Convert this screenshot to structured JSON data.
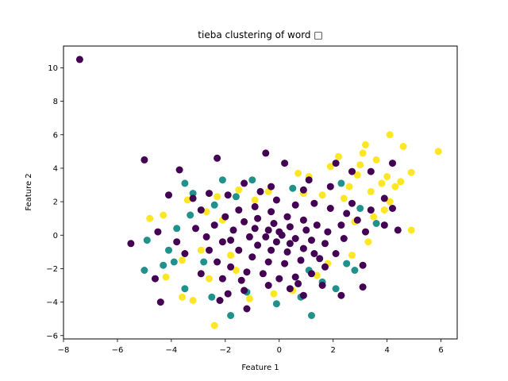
{
  "chart_data": {
    "type": "scatter",
    "title": "tieba clustering of word □",
    "xlabel": "Feature 1",
    "ylabel": "Feature 2",
    "xlim": [
      -8,
      6.6
    ],
    "ylim": [
      -6.2,
      11.3
    ],
    "xticks": [
      -8,
      -6,
      -4,
      -2,
      0,
      2,
      4,
      6
    ],
    "yticks": [
      -6,
      -4,
      -2,
      0,
      2,
      4,
      6,
      8,
      10
    ],
    "grid": false,
    "legend": "none",
    "series": [
      {
        "color": "#fde725",
        "points": [
          [
            5.9,
            5
          ],
          [
            4.9,
            3.75
          ],
          [
            4.1,
            6
          ],
          [
            4.6,
            5.3
          ],
          [
            4.5,
            3.2
          ],
          [
            4.1,
            2
          ],
          [
            4,
            3.5
          ],
          [
            4.9,
            0.3
          ],
          [
            3.2,
            5.4
          ],
          [
            3.6,
            4.5
          ],
          [
            3.1,
            4.9
          ],
          [
            3.8,
            3.1
          ],
          [
            2.2,
            4.7
          ],
          [
            1.9,
            4.1
          ],
          [
            1.1,
            3.5
          ],
          [
            0.7,
            3.7
          ],
          [
            -3.6,
            -3.7
          ],
          [
            -3.2,
            -3.9
          ],
          [
            -2.4,
            -5.4
          ],
          [
            -1.1,
            -3.8
          ],
          [
            -0.2,
            -3.5
          ],
          [
            -4.8,
            1
          ],
          [
            -4.3,
            1.2
          ],
          [
            -3.4,
            2.1
          ],
          [
            -2.3,
            2.3
          ],
          [
            -1.5,
            2.7
          ],
          [
            3,
            4.2
          ],
          [
            2.6,
            2.9
          ],
          [
            3.5,
            1.1
          ],
          [
            3.3,
            -0.4
          ],
          [
            2.7,
            -1.2
          ],
          [
            -2.6,
            -2.6
          ],
          [
            -2.9,
            -0.9
          ],
          [
            -3.6,
            -1.5
          ],
          [
            -4.2,
            -2.5
          ],
          [
            -1.8,
            -1.2
          ],
          [
            1.4,
            -2.4
          ],
          [
            0.5,
            -3.3
          ],
          [
            2.4,
            2.2
          ],
          [
            1.6,
            2.4
          ],
          [
            -0.9,
            2.1
          ],
          [
            1.8,
            -1.7
          ],
          [
            2.8,
            0.8
          ],
          [
            0.9,
            2.5
          ],
          [
            -2.1,
            0.9
          ],
          [
            -1.6,
            -2.1
          ],
          [
            3.9,
            1.5
          ],
          [
            3.4,
            2.6
          ],
          [
            -0.4,
            2.6
          ],
          [
            -2.7,
            1.4
          ],
          [
            4.3,
            2.9
          ],
          [
            2.9,
            3.6
          ]
        ]
      },
      {
        "color": "#21918c",
        "points": [
          [
            -4.9,
            -0.3
          ],
          [
            -5,
            -2.1
          ],
          [
            -4.3,
            -1.8
          ],
          [
            -4.1,
            -0.9
          ],
          [
            -3.8,
            0.4
          ],
          [
            -3.5,
            3.1
          ],
          [
            -3.2,
            2.5
          ],
          [
            -1.8,
            -4.8
          ],
          [
            -0.1,
            -4.1
          ],
          [
            1.2,
            -4.8
          ],
          [
            0.8,
            -3.7
          ],
          [
            2.1,
            -3.2
          ],
          [
            -3.5,
            -3.2
          ],
          [
            -2.8,
            -1.6
          ],
          [
            -2.4,
            1.8
          ],
          [
            -2.1,
            3.3
          ],
          [
            -1,
            3.3
          ],
          [
            2.3,
            3.1
          ],
          [
            3,
            1.6
          ],
          [
            3.6,
            0.7
          ],
          [
            2.5,
            -1.7
          ],
          [
            1.6,
            -2.8
          ],
          [
            -3.9,
            -1.6
          ],
          [
            -1.2,
            -3.4
          ],
          [
            -2.5,
            -3.7
          ],
          [
            -3.3,
            1.2
          ],
          [
            1.1,
            -2.1
          ],
          [
            2.8,
            -2.1
          ],
          [
            -1.6,
            2.3
          ],
          [
            0.5,
            2.8
          ]
        ]
      },
      {
        "color": "#440154",
        "points": [
          [
            -7.4,
            10.5
          ],
          [
            -5,
            4.5
          ],
          [
            -5.5,
            -0.5
          ],
          [
            -4.4,
            -4
          ],
          [
            -3.7,
            3.9
          ],
          [
            -4.1,
            2.4
          ],
          [
            -2.3,
            4.6
          ],
          [
            -0.5,
            4.9
          ],
          [
            0.2,
            4.3
          ],
          [
            1.1,
            3.3
          ],
          [
            2.1,
            4.3
          ],
          [
            2.7,
            3.8
          ],
          [
            3.4,
            3.8
          ],
          [
            4.2,
            4.3
          ],
          [
            3.9,
            2.2
          ],
          [
            4.2,
            1.6
          ],
          [
            4.4,
            0.3
          ],
          [
            3.9,
            0.6
          ],
          [
            3.2,
            0.2
          ],
          [
            3.1,
            -1.8
          ],
          [
            3.1,
            -3.1
          ],
          [
            2.3,
            -3.6
          ],
          [
            1.6,
            -3
          ],
          [
            0.9,
            -3.6
          ],
          [
            0.4,
            -3.2
          ],
          [
            -0.4,
            -3
          ],
          [
            -1.3,
            -3.3
          ],
          [
            -1.9,
            -3.5
          ],
          [
            -2.2,
            -3.9
          ],
          [
            -2.9,
            -2.3
          ],
          [
            -3.5,
            -1.1
          ],
          [
            -4.6,
            -2.6
          ],
          [
            -4.5,
            0.2
          ],
          [
            -3.8,
            -0.4
          ],
          [
            -3.1,
            0.4
          ],
          [
            -3.2,
            2.2
          ],
          [
            -2.6,
            2.5
          ],
          [
            -1.9,
            2.4
          ],
          [
            -1.3,
            3.1
          ],
          [
            -0.7,
            2.6
          ],
          [
            -0.1,
            2.1
          ],
          [
            0.6,
            1.8
          ],
          [
            1.3,
            1.9
          ],
          [
            1.9,
            1.6
          ],
          [
            2.5,
            1.3
          ],
          [
            2.9,
            0.9
          ],
          [
            2.4,
            -0.2
          ],
          [
            2.1,
            -1.1
          ],
          [
            1.7,
            -1.9
          ],
          [
            1.2,
            -2.3
          ],
          [
            0.6,
            -2.5
          ],
          [
            0,
            -2.6
          ],
          [
            -0.6,
            -2.3
          ],
          [
            -1.2,
            -2.2
          ],
          [
            -1.8,
            -1.9
          ],
          [
            -2.3,
            -1.6
          ],
          [
            -2.6,
            -0.9
          ],
          [
            -2.7,
            -0.1
          ],
          [
            -2.4,
            0.6
          ],
          [
            -2,
            1.1
          ],
          [
            -1.5,
            1.5
          ],
          [
            -0.9,
            1.7
          ],
          [
            -0.3,
            1.4
          ],
          [
            0.3,
            1.1
          ],
          [
            0.9,
            0.9
          ],
          [
            1.4,
            0.6
          ],
          [
            1.8,
            0.2
          ],
          [
            1.7,
            -0.5
          ],
          [
            1.3,
            -1.1
          ],
          [
            0.8,
            -1.5
          ],
          [
            0.2,
            -1.7
          ],
          [
            -0.4,
            -1.6
          ],
          [
            -1,
            -1.3
          ],
          [
            -1.5,
            -0.9
          ],
          [
            -1.8,
            -0.3
          ],
          [
            -1.7,
            0.3
          ],
          [
            -1.3,
            0.8
          ],
          [
            -0.8,
            1
          ],
          [
            -0.2,
            0.7
          ],
          [
            0.4,
            0.5
          ],
          [
            1,
            0.3
          ],
          [
            1.2,
            -0.3
          ],
          [
            0.9,
            -0.8
          ],
          [
            0.3,
            -1
          ],
          [
            -0.3,
            -0.9
          ],
          [
            -0.8,
            -0.6
          ],
          [
            -1.1,
            -0.1
          ],
          [
            -0.9,
            0.4
          ],
          [
            -0.4,
            0.3
          ],
          [
            0.1,
            0
          ],
          [
            0.6,
            -0.2
          ],
          [
            0.4,
            -0.5
          ],
          [
            -0.1,
            -0.4
          ],
          [
            -0.5,
            -0.1
          ],
          [
            0,
            0.2
          ],
          [
            -1.2,
            -4.4
          ],
          [
            2.7,
            1.9
          ],
          [
            3.4,
            1.5
          ],
          [
            1.9,
            2.9
          ],
          [
            -1.4,
            -2.7
          ],
          [
            -2.1,
            -2.6
          ],
          [
            0.9,
            2.7
          ],
          [
            -0.3,
            2.9
          ],
          [
            1.5,
            -1.4
          ],
          [
            2.3,
            0.6
          ],
          [
            -2.9,
            1.5
          ],
          [
            -2.1,
            -0.4
          ],
          [
            0.7,
            -2.9
          ]
        ]
      }
    ]
  }
}
